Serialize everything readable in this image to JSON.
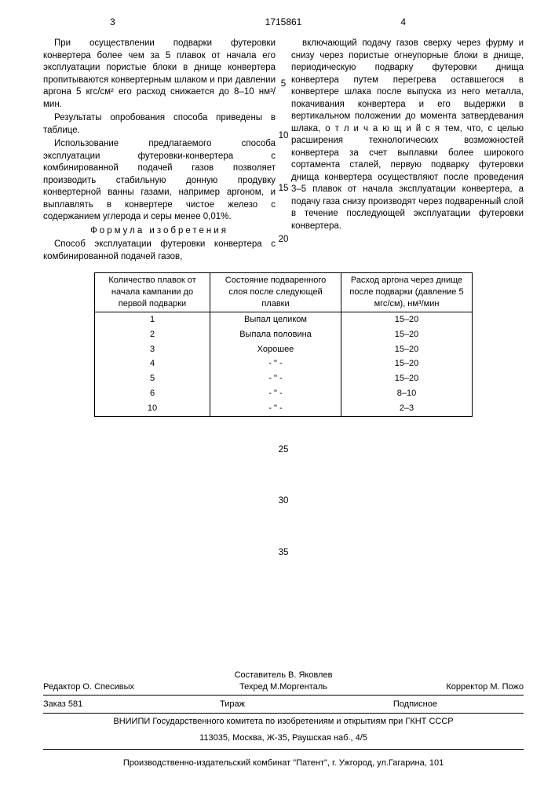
{
  "header": {
    "leftPage": "3",
    "docNumber": "1715861",
    "rightPage": "4"
  },
  "leftCol": {
    "p1": "При осуществлении подварки футеровки конвертера более чем за 5 плавок от начала его эксплуатации пористые блоки в днище конвертера пропитываются конвертерным шлаком и при давлении аргона 5 кгс/см² его расход снижается до 8–10 нм³/мин.",
    "p2": "Результаты опробования способа приведены в таблице.",
    "p3": "Использование предлагаемого способа эксплуатации футеровки-конвертера с комбинированной подачей газов позволяет производить стабильную донную продувку конвертерной ванны газами, например аргоном, и выплавлять в конвертере чистое железо с содержанием углерода и серы менее 0,01%.",
    "formulaTitle": "Формула изобретения",
    "p4": "Способ эксплуатации футеровки конвертера с комбинированной подачей газов,"
  },
  "rightCol": {
    "p1": "включающий подачу газов сверху через фурму и снизу через пористые огнеупорные блоки в днище, периодическую подварку футеровки днища конвертера путем перегрева оставшегося в конвертере шлака после выпуска из него металла, покачивания конвертера и его выдержки в вертикальном положении до момента затвердевания шлака, о т л и ч а ю щ и й с я  тем, что, с целью расширения технологических возможностей конвертера за счет выплавки более широкого сортамента сталей, первую подварку футеровки днища конвертера осуществляют после проведения 3–5 плавок от начала эксплуатации конвертера, а подачу газа снизу производят через подваренный слой в течение последующей эксплуатации футеровки конвертера."
  },
  "lineNumbers": {
    "n5": "5",
    "n10": "10",
    "n15": "15",
    "n20": "20",
    "n25": "25",
    "n30": "30",
    "n35": "35"
  },
  "table": {
    "headers": {
      "c1": "Количество плавок от начала кампании до первой подварки",
      "c2": "Состояние подваренного слоя после следующей плавки",
      "c3": "Расход аргона через днище после подварки (давление 5 мгс/см), нм³/мин"
    },
    "rows": [
      {
        "c1": "1",
        "c2": "Выпал целиком",
        "c3": "15–20"
      },
      {
        "c1": "2",
        "c2": "Выпала половина",
        "c3": "15–20"
      },
      {
        "c1": "3",
        "c2": "Хорошее",
        "c3": "15–20"
      },
      {
        "c1": "4",
        "c2": "- \" -",
        "c3": "15–20"
      },
      {
        "c1": "5",
        "c2": "- \" -",
        "c3": "15–20"
      },
      {
        "c1": "6",
        "c2": "- \" -",
        "c3": "8–10"
      },
      {
        "c1": "10",
        "c2": "- \" -",
        "c3": "2–3"
      }
    ]
  },
  "footer": {
    "editor": "Редактор  О. Спесивых",
    "composer": "Составитель  В. Яковлев",
    "techred": "Техред М.Моргенталь",
    "corrector": "Корректор  М. Пожо",
    "order": "Заказ 581",
    "tirazh": "Тираж",
    "subscr": "Подписное",
    "org": "ВНИИПИ Государственного комитета по изобретениям и открытиям при ГКНТ СССР",
    "addr": "113035, Москва, Ж-35, Раушская наб., 4/5",
    "publisher": "Производственно-издательский комбинат \"Патент\", г. Ужгород, ул.Гагарина, 101"
  }
}
